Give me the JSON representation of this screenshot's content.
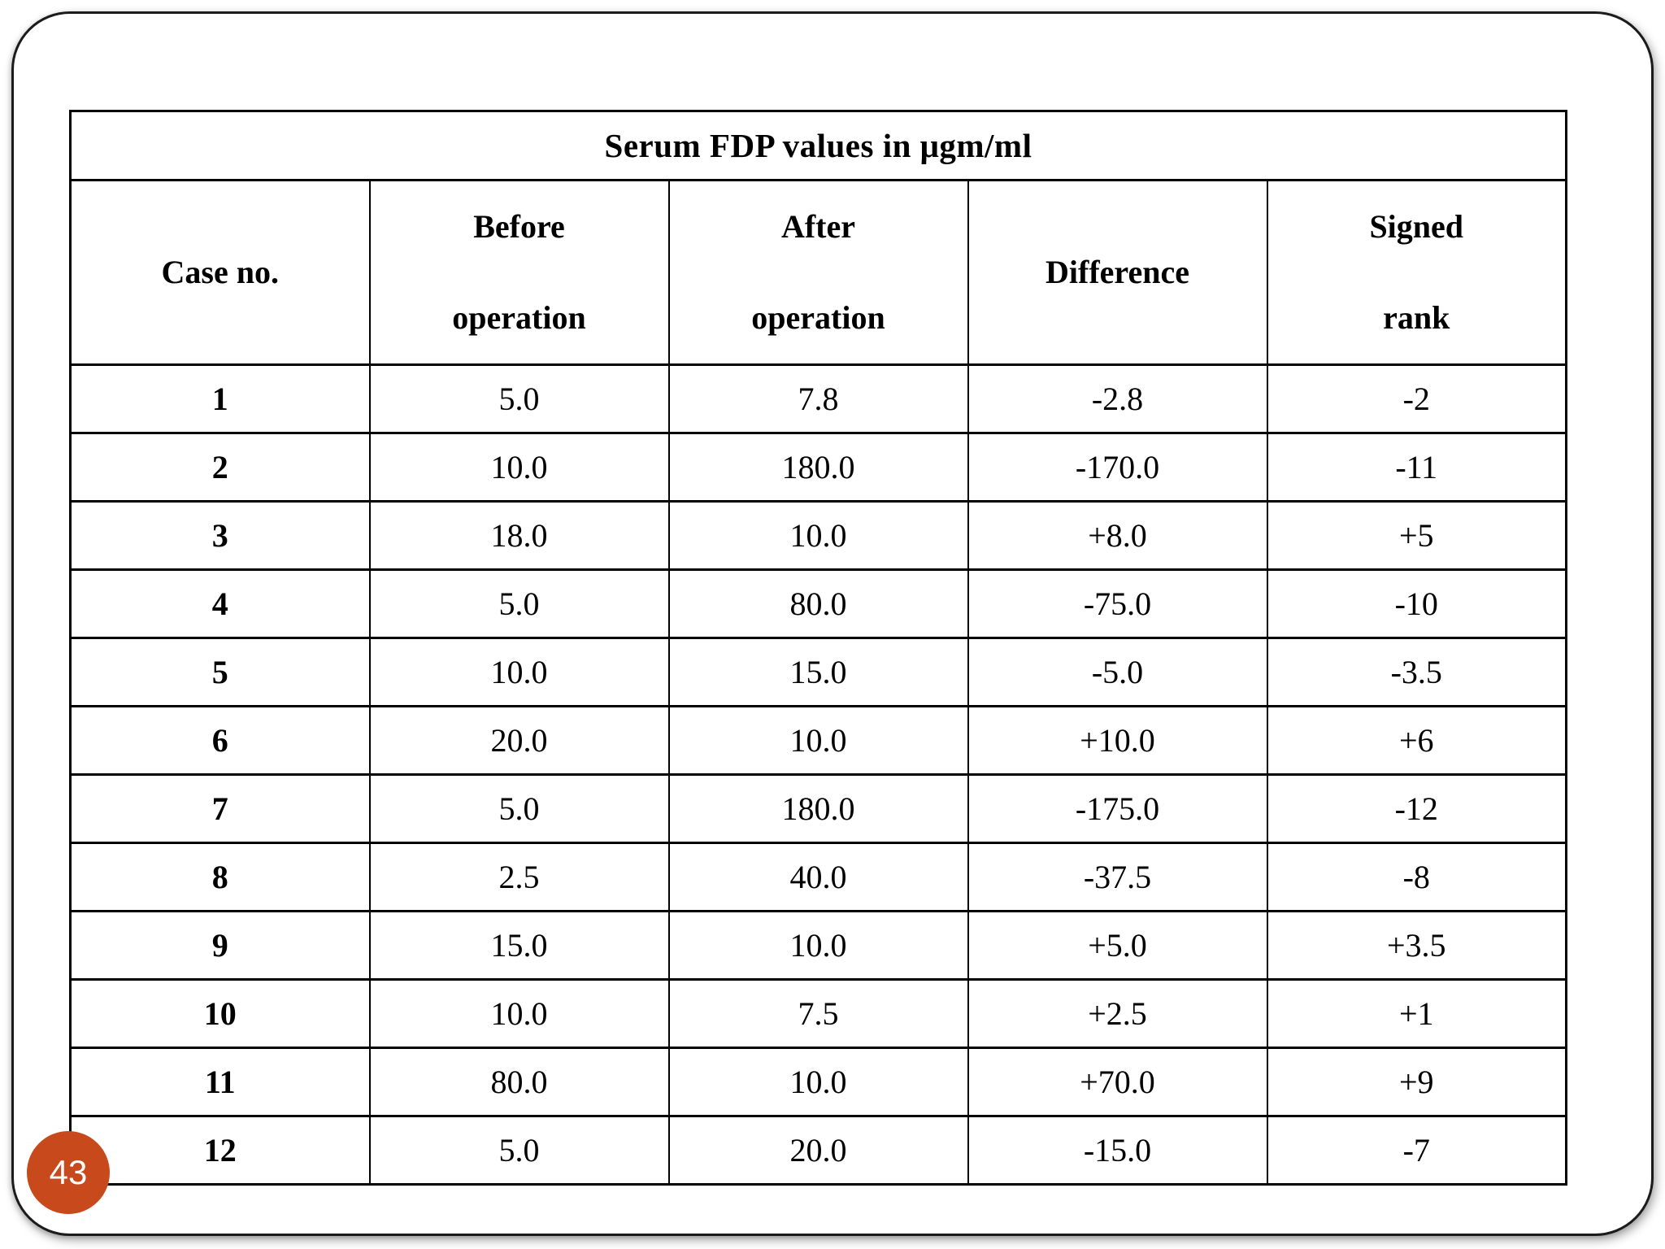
{
  "page": {
    "number": "43"
  },
  "colors": {
    "badge": "#c8491c",
    "table_border": "#000000",
    "text": "#000000",
    "background": "#ffffff"
  },
  "table": {
    "title": "Serum FDP values in μgm/ml",
    "headers": [
      {
        "line1": "Case no.",
        "line2": ""
      },
      {
        "line1": "Before",
        "line2": "operation"
      },
      {
        "line1": "After",
        "line2": "operation"
      },
      {
        "line1": "Difference",
        "line2": ""
      },
      {
        "line1": "Signed",
        "line2": "rank"
      }
    ],
    "rows": [
      {
        "case": "1",
        "before": "5.0",
        "after": "7.8",
        "difference": "-2.8",
        "signed_rank": "-2"
      },
      {
        "case": "2",
        "before": "10.0",
        "after": "180.0",
        "difference": "-170.0",
        "signed_rank": "-11"
      },
      {
        "case": "3",
        "before": "18.0",
        "after": "10.0",
        "difference": "+8.0",
        "signed_rank": "+5"
      },
      {
        "case": "4",
        "before": "5.0",
        "after": "80.0",
        "difference": "-75.0",
        "signed_rank": "-10"
      },
      {
        "case": "5",
        "before": "10.0",
        "after": "15.0",
        "difference": "-5.0",
        "signed_rank": "-3.5"
      },
      {
        "case": "6",
        "before": "20.0",
        "after": "10.0",
        "difference": "+10.0",
        "signed_rank": "+6"
      },
      {
        "case": "7",
        "before": "5.0",
        "after": "180.0",
        "difference": "-175.0",
        "signed_rank": "-12"
      },
      {
        "case": "8",
        "before": "2.5",
        "after": "40.0",
        "difference": "-37.5",
        "signed_rank": "-8"
      },
      {
        "case": "9",
        "before": "15.0",
        "after": "10.0",
        "difference": "+5.0",
        "signed_rank": "+3.5"
      },
      {
        "case": "10",
        "before": "10.0",
        "after": "7.5",
        "difference": "+2.5",
        "signed_rank": "+1"
      },
      {
        "case": "11",
        "before": "80.0",
        "after": "10.0",
        "difference": "+70.0",
        "signed_rank": "+9"
      },
      {
        "case": "12",
        "before": "5.0",
        "after": "20.0",
        "difference": "-15.0",
        "signed_rank": "-7"
      }
    ]
  }
}
